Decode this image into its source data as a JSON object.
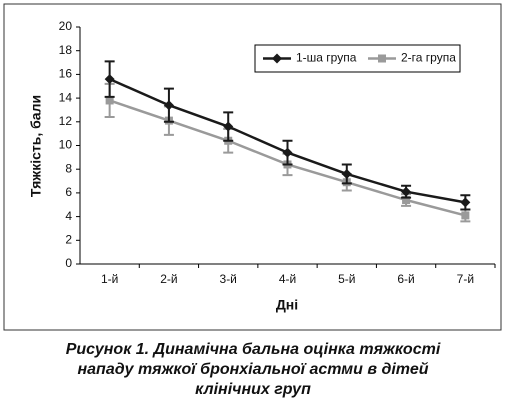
{
  "chart_data": {
    "type": "line",
    "y_label": "Тяжкість, бали",
    "x_label": "Дні",
    "categories": [
      "1-й",
      "2-й",
      "3-й",
      "4-й",
      "5-й",
      "6-й",
      "7-й"
    ],
    "series": [
      {
        "name": "1-ша група",
        "color": "#1a1a1a",
        "marker": "diamond",
        "values": [
          15.6,
          13.4,
          11.6,
          9.4,
          7.6,
          6.1,
          5.2
        ],
        "errors": [
          1.5,
          1.4,
          1.2,
          1.0,
          0.8,
          0.5,
          0.6
        ]
      },
      {
        "name": "2-га група",
        "color": "#9a9a9a",
        "marker": "square",
        "values": [
          13.8,
          12.1,
          10.4,
          8.4,
          6.9,
          5.4,
          4.1
        ],
        "errors": [
          1.4,
          1.2,
          1.0,
          0.9,
          0.7,
          0.5,
          0.5
        ]
      }
    ],
    "ylim": [
      0,
      20
    ],
    "yticks": [
      0,
      2,
      4,
      6,
      8,
      10,
      12,
      14,
      16,
      18,
      20
    ],
    "legend": "top-right",
    "grid": false
  },
  "caption": [
    "Рисунок 1. Динамічна бальна оцінка тяжкості",
    "нападу тяжкої бронхіальної астми в дітей",
    "клінічних груп"
  ]
}
